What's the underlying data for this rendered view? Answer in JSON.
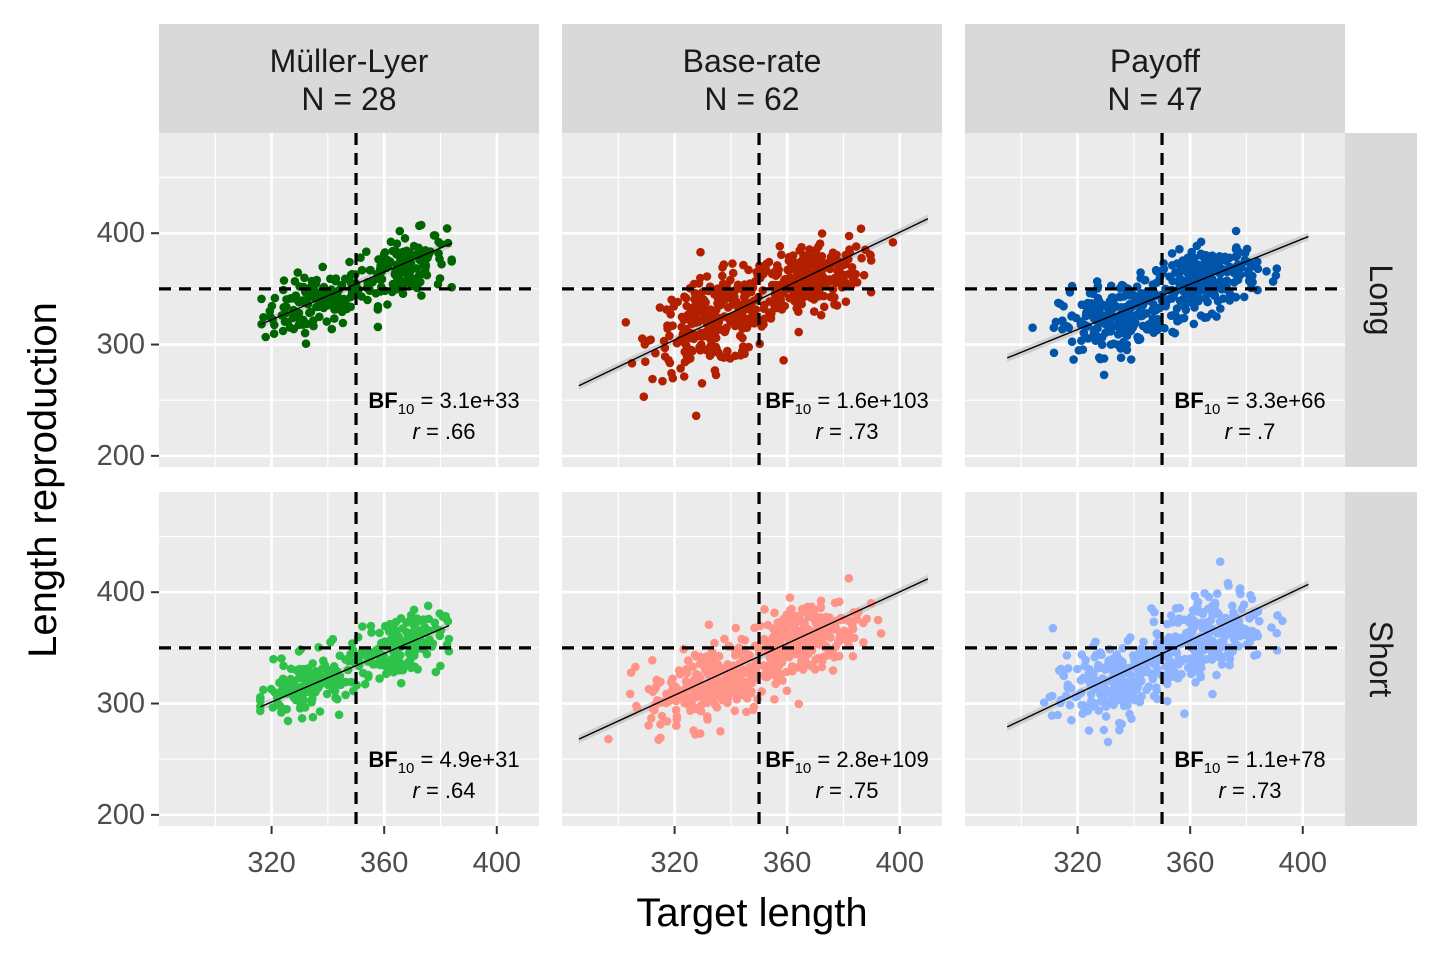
{
  "chart_data": {
    "type": "scatter",
    "xlabel": "Target length",
    "ylabel": "Length reproduction",
    "xlim": [
      280,
      415
    ],
    "ylim": [
      190,
      490
    ],
    "x_ticks": [
      320,
      360,
      400
    ],
    "y_ticks": [
      200,
      300,
      400
    ],
    "reference_lines": {
      "x": 350,
      "y": 350
    },
    "grid": true,
    "columns": [
      {
        "title": "Müller-Lyer",
        "n_label": "N = 28"
      },
      {
        "title": "Base-rate",
        "n_label": "N = 62"
      },
      {
        "title": "Payoff",
        "n_label": "N = 47"
      }
    ],
    "rows": [
      {
        "label": "Long"
      },
      {
        "label": "Short"
      }
    ],
    "panels": [
      {
        "column": 0,
        "row": 0,
        "color": "#006400",
        "x_range": [
          316,
          384
        ],
        "clusters": [
          {
            "center": [
              335,
              333
            ],
            "spread": [
              9,
              16
            ],
            "n": 120
          },
          {
            "center": [
              366,
              367
            ],
            "spread": [
              8,
              18
            ],
            "n": 150
          }
        ],
        "fit": {
          "x": [
            316,
            384
          ],
          "y": [
            318,
            391
          ]
        },
        "bf_label": "BF",
        "bf_sub": "10",
        "bf_value": " = 3.1e+33",
        "r_label": "r",
        "r_value": " =  .66"
      },
      {
        "column": 1,
        "row": 0,
        "color": "#B22000",
        "x_range": [
          286,
          410
        ],
        "clusters": [
          {
            "center": [
              334,
              320
            ],
            "spread": [
              11,
              25
            ],
            "n": 260
          },
          {
            "center": [
              366,
              356
            ],
            "spread": [
              10,
              20
            ],
            "n": 260
          }
        ],
        "fit": {
          "x": [
            286,
            410
          ],
          "y": [
            263,
            413
          ]
        },
        "bf_label": "BF",
        "bf_sub": "10",
        "bf_value": " = 1.6e+103",
        "r_label": "r",
        "r_value": " =  .73"
      },
      {
        "column": 2,
        "row": 0,
        "color": "#0055AA",
        "x_range": [
          295,
          402
        ],
        "clusters": [
          {
            "center": [
              334,
              323
            ],
            "spread": [
              10,
              20
            ],
            "n": 230
          },
          {
            "center": [
              366,
              357
            ],
            "spread": [
              9,
              18
            ],
            "n": 230
          }
        ],
        "fit": {
          "x": [
            295,
            402
          ],
          "y": [
            288,
            397
          ]
        },
        "bf_label": "BF",
        "bf_sub": "10",
        "bf_value": " = 3.3e+66",
        "r_label": "r",
        "r_value": " =  .7"
      },
      {
        "column": 0,
        "row": 1,
        "color": "#2FC24A",
        "x_range": [
          316,
          383
        ],
        "clusters": [
          {
            "center": [
              334,
              315
            ],
            "spread": [
              9,
              16
            ],
            "n": 140
          },
          {
            "center": [
              365,
              352
            ],
            "spread": [
              8,
              18
            ],
            "n": 150
          }
        ],
        "fit": {
          "x": [
            316,
            383
          ],
          "y": [
            297,
            370
          ]
        },
        "bf_label": "BF",
        "bf_sub": "10",
        "bf_value": " = 4.9e+31",
        "r_label": "r",
        "r_value": " =  .64"
      },
      {
        "column": 1,
        "row": 1,
        "color": "#FF9388",
        "x_range": [
          286,
          410
        ],
        "clusters": [
          {
            "center": [
              333,
              312
            ],
            "spread": [
              11,
              22
            ],
            "n": 250
          },
          {
            "center": [
              366,
              356
            ],
            "spread": [
              10,
              20
            ],
            "n": 260
          }
        ],
        "fit": {
          "x": [
            286,
            410
          ],
          "y": [
            268,
            412
          ]
        },
        "bf_label": "BF",
        "bf_sub": "10",
        "bf_value": " = 2.8e+109",
        "r_label": "r",
        "r_value": " =  .75"
      },
      {
        "column": 2,
        "row": 1,
        "color": "#8FB4FF",
        "x_range": [
          295,
          402
        ],
        "clusters": [
          {
            "center": [
              333,
              313
            ],
            "spread": [
              11,
              22
            ],
            "n": 230
          },
          {
            "center": [
              367,
              358
            ],
            "spread": [
              10,
              22
            ],
            "n": 230
          }
        ],
        "fit": {
          "x": [
            295,
            402
          ],
          "y": [
            279,
            407
          ]
        },
        "bf_label": "BF",
        "bf_sub": "10",
        "bf_value": " = 1.1e+78",
        "r_label": "r",
        "r_value": " =  .73"
      }
    ]
  }
}
